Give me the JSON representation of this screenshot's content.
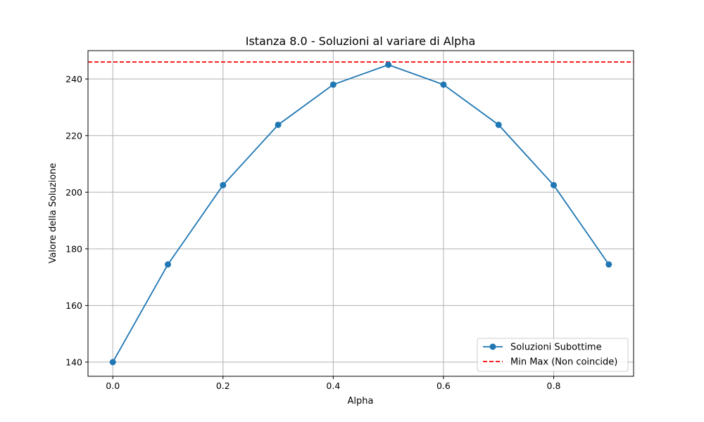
{
  "chart_data": {
    "type": "line",
    "title": "Istanza 8.0 - Soluzioni al variare di Alpha",
    "xlabel": "Alpha",
    "ylabel": "Valore della Soluzione",
    "xlim": [
      -0.045,
      0.945
    ],
    "ylim": [
      135,
      250
    ],
    "xticks": [
      0.0,
      0.2,
      0.4,
      0.6,
      0.8
    ],
    "xtick_labels": [
      "0.0",
      "0.2",
      "0.4",
      "0.6",
      "0.8"
    ],
    "yticks": [
      140,
      160,
      180,
      200,
      220,
      240
    ],
    "ytick_labels": [
      "140",
      "160",
      "180",
      "200",
      "220",
      "240"
    ],
    "grid": true,
    "legend_position": "bottom-right",
    "series": [
      {
        "name": "Soluzioni Subottime",
        "color": "#1f77b4",
        "marker": "circle",
        "x": [
          0.0,
          0.1,
          0.2,
          0.3,
          0.4,
          0.5,
          0.6,
          0.7,
          0.8,
          0.9
        ],
        "y": [
          140,
          174.5,
          202.5,
          223.8,
          238,
          245,
          238,
          223.8,
          202.5,
          174.5
        ]
      }
    ],
    "reference_lines": [
      {
        "name": "Min Max (Non coincide)",
        "color": "#ff0000",
        "style": "dashed",
        "y": 246
      }
    ]
  }
}
